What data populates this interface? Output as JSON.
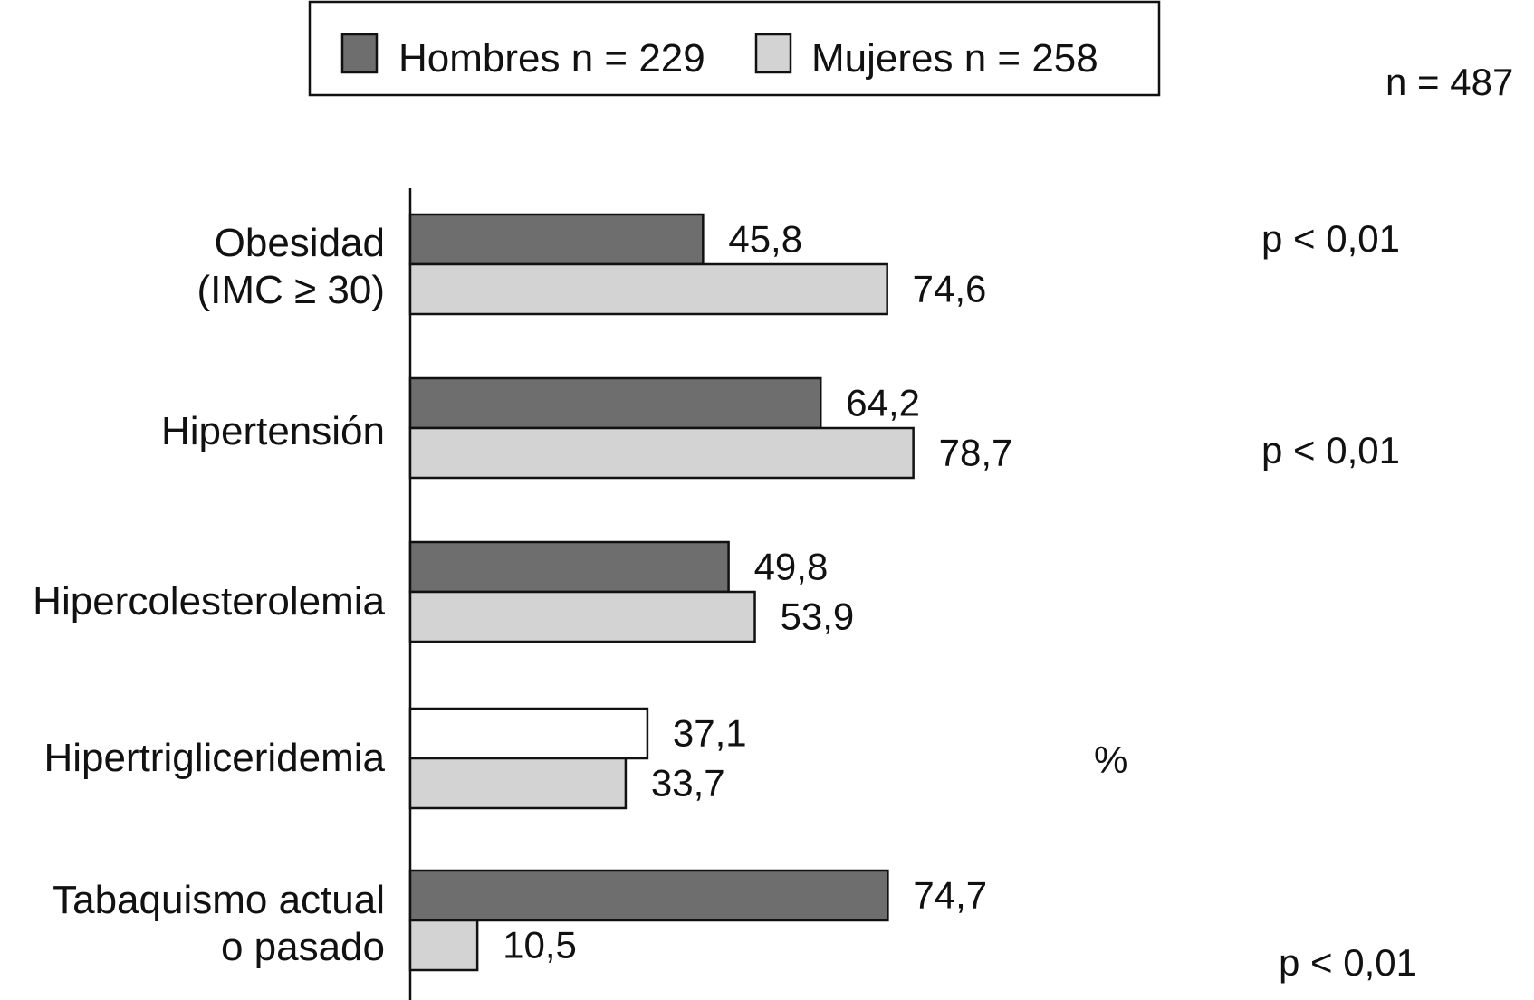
{
  "chart_data": {
    "type": "bar",
    "orientation": "horizontal",
    "sample_note": "n = 487",
    "unit_label": "%",
    "categories": [
      [
        "Obesidad",
        "(IMC ≥ 30)"
      ],
      [
        "Hipertensión"
      ],
      [
        "Hipercolesterolemia"
      ],
      [
        "Hipertrigliceridemia"
      ],
      [
        "Tabaquismo actual",
        "o pasado"
      ]
    ],
    "series": [
      {
        "name": "Hombres n = 229",
        "color": "#6e6e6e",
        "values": [
          45.8,
          64.2,
          49.8,
          37.1,
          74.7
        ],
        "labels": [
          "45,8",
          "64,2",
          "49,8",
          "37,1",
          "74,7"
        ],
        "colors": [
          "#6e6e6e",
          "#6e6e6e",
          "#6e6e6e",
          "#ffffff",
          "#6e6e6e"
        ]
      },
      {
        "name": "Mujeres n = 258",
        "color": "#d3d3d3",
        "values": [
          74.6,
          78.7,
          53.9,
          33.7,
          10.5
        ],
        "labels": [
          "74,6",
          "78,7",
          "53,9",
          "33,7",
          "10,5"
        ],
        "colors": [
          "#d3d3d3",
          "#d3d3d3",
          "#d3d3d3",
          "#d3d3d3",
          "#d3d3d3"
        ]
      }
    ],
    "p_values": [
      "p < 0,01",
      "p < 0,01",
      "",
      "",
      "p < 0,01"
    ],
    "xlim": [
      0,
      100
    ],
    "grid": false,
    "legend": "top-center"
  }
}
